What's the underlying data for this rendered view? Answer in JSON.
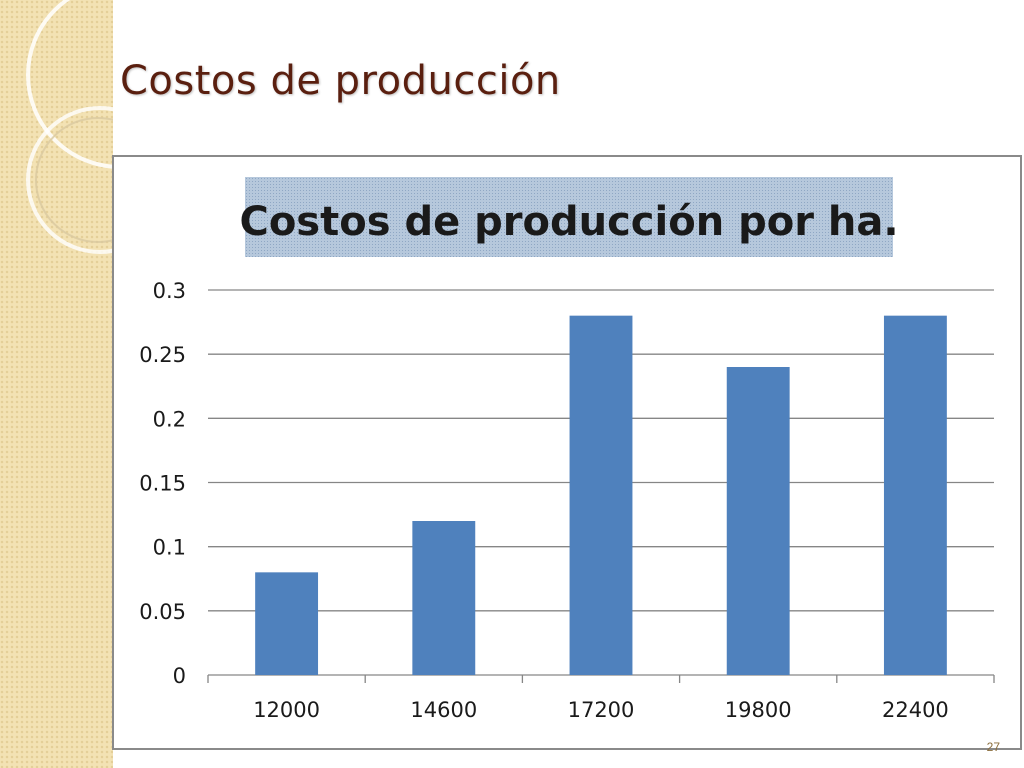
{
  "slide": {
    "title": "Costos de producción",
    "number": "27"
  },
  "colors": {
    "title": "#5a1f0f",
    "bar": "#4f81bd",
    "grid": "#868686",
    "strip": "#f3e2b4"
  },
  "chart_data": {
    "type": "bar",
    "title": "Costos de producción por ha.",
    "categories": [
      "12000",
      "14600",
      "17200",
      "19800",
      "22400"
    ],
    "values": [
      0.08,
      0.12,
      0.28,
      0.24,
      0.28
    ],
    "yticks": [
      "0",
      "0.05",
      "0.1",
      "0.15",
      "0.2",
      "0.25",
      "0.3"
    ],
    "ylim": [
      0,
      0.3
    ],
    "grid": true,
    "legend": "none"
  }
}
